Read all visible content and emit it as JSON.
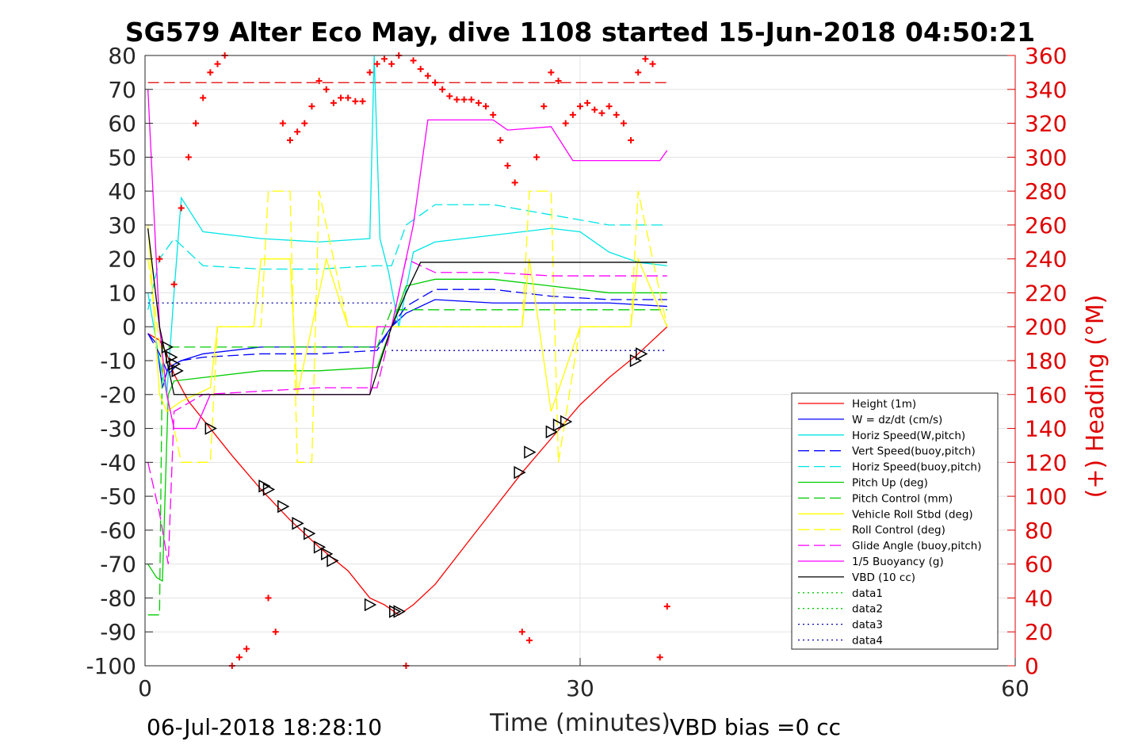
{
  "chart_data": {
    "type": "line",
    "title": "SG579 Alter Eco May, dive 1108 started 15-Jun-2018 04:50:21",
    "xlabel": "Time (minutes)",
    "ylabel": "",
    "ylabel_right": "(+) Heading (°M)",
    "xlim": [
      0,
      60
    ],
    "ylim": [
      -100,
      80
    ],
    "ylim_right": [
      0,
      360
    ],
    "x_ticks": [
      "0",
      "30",
      "60"
    ],
    "y_ticks": [
      "80",
      "70",
      "60",
      "50",
      "40",
      "30",
      "20",
      "10",
      "0",
      "-10",
      "-20",
      "-30",
      "-40",
      "-50",
      "-60",
      "-70",
      "-80",
      "-90",
      "-100"
    ],
    "y_ticks_right": [
      "360",
      "340",
      "320",
      "300",
      "280",
      "260",
      "240",
      "220",
      "200",
      "180",
      "160",
      "140",
      "120",
      "100",
      "80",
      "60",
      "40",
      "20",
      "0"
    ],
    "grid": true,
    "legend_position": "lower-right",
    "footer_left": "06-Jul-2018 18:28:10",
    "footer_right": "VBD bias =0 cc",
    "series": [
      {
        "name": "Height (1m)",
        "color": "#ff0000",
        "style": "solid",
        "x": [
          0.2,
          1.0,
          1.5,
          2.0,
          3.0,
          4.5,
          6.0,
          8.0,
          10.0,
          12.0,
          14.0,
          15.5,
          16.5,
          17.5,
          18.5,
          20.0,
          22.0,
          24.0,
          26.0,
          28.0,
          30.0,
          32.0,
          34.0,
          36.0
        ],
        "y": [
          -2,
          -4,
          -8,
          -14,
          -22,
          -30,
          -38,
          -48,
          -57,
          -65,
          -72,
          -80,
          -82,
          -85,
          -82,
          -76,
          -65,
          -54,
          -43,
          -33,
          -23,
          -15,
          -8,
          0
        ]
      },
      {
        "name": "W = dz/dt (cm/s)",
        "color": "#0000ff",
        "style": "solid",
        "x": [
          0.2,
          0.8,
          1.2,
          1.6,
          2.5,
          4.0,
          8.0,
          12.0,
          16.0,
          17.0,
          18.0,
          20.0,
          24.0,
          28.0,
          32.0,
          36.0
        ],
        "y": [
          -2,
          -5,
          -18,
          -12,
          -10,
          -8,
          -6,
          -6,
          -6,
          0,
          4,
          8,
          7,
          7,
          7,
          6
        ]
      },
      {
        "name": "Horiz Speed(W,pitch)",
        "color": "#00e5e5",
        "style": "solid",
        "x": [
          0.2,
          1.0,
          1.5,
          2.0,
          2.5,
          4.0,
          8.0,
          12.0,
          15.5,
          15.8,
          16.2,
          16.8,
          17.5,
          18.5,
          20.0,
          24.0,
          28.0,
          30.0,
          32.0,
          34.0,
          36.0
        ],
        "y": [
          10,
          -10,
          -20,
          10,
          38,
          28,
          26,
          25,
          26,
          80,
          26,
          16,
          0,
          22,
          25,
          27,
          29,
          28,
          22,
          19,
          18
        ]
      },
      {
        "name": "Vert Speed(buoy,pitch)",
        "color": "#0000ff",
        "style": "dash",
        "x": [
          0.2,
          1.0,
          1.6,
          2.5,
          4.0,
          8.0,
          12.0,
          16.0,
          17.0,
          18.0,
          20.0,
          24.0,
          28.0,
          32.0,
          36.0
        ],
        "y": [
          -2,
          -8,
          -14,
          -10,
          -9,
          -8,
          -8,
          -7,
          0,
          6,
          11,
          11,
          9,
          8,
          8
        ]
      },
      {
        "name": "Horiz Speed(buoy,pitch)",
        "color": "#00e5e5",
        "style": "dash",
        "x": [
          0.2,
          1.0,
          2.0,
          4.0,
          8.0,
          12.0,
          16.0,
          17.0,
          18.0,
          20.0,
          24.0,
          28.0,
          32.0,
          36.0
        ],
        "y": [
          5,
          20,
          26,
          18,
          17,
          17,
          18,
          18,
          30,
          36,
          36,
          33,
          30,
          30
        ]
      },
      {
        "name": "Pitch Up (deg)",
        "color": "#00cc00",
        "style": "solid",
        "x": [
          0.2,
          0.8,
          1.2,
          1.6,
          2.0,
          4.0,
          8.0,
          12.0,
          16.0,
          17.0,
          18.0,
          20.0,
          24.0,
          28.0,
          32.0,
          36.0
        ],
        "y": [
          -70,
          -74,
          -75,
          -20,
          -16,
          -15,
          -13,
          -13,
          -12,
          0,
          12,
          14,
          14,
          12,
          10,
          10
        ]
      },
      {
        "name": "Pitch Control (mm)",
        "color": "#00cc00",
        "style": "dash",
        "x": [
          0.2,
          1.0,
          1.2,
          2.0,
          8.0,
          16.0,
          17.0,
          18.0,
          24.0,
          30.0,
          36.0
        ],
        "y": [
          -85,
          -85,
          -6,
          -6,
          -6,
          -6,
          5,
          5,
          5,
          5,
          5
        ]
      },
      {
        "name": "Vehicle Roll Stbd (deg)",
        "color": "#ffff00",
        "style": "solid",
        "x": [
          0.2,
          1.0,
          1.5,
          2.5,
          4.5,
          5.0,
          7.5,
          8.0,
          10.0,
          10.5,
          11.5,
          12.5,
          14.0,
          16.0,
          17.0,
          20.0,
          24.0,
          26.0,
          26.5,
          28.0,
          30.0,
          32.0,
          33.5,
          34.0,
          36.0
        ],
        "y": [
          30,
          -20,
          -25,
          -22,
          -18,
          0,
          0,
          20,
          20,
          -20,
          0,
          20,
          0,
          0,
          0,
          0,
          0,
          0,
          20,
          -25,
          0,
          0,
          0,
          20,
          0
        ]
      },
      {
        "name": "Roll Control (deg)",
        "color": "#ffff00",
        "style": "dash",
        "x": [
          0.2,
          1.5,
          2.5,
          4.5,
          5.0,
          8.0,
          8.5,
          10.0,
          10.5,
          11.5,
          12.0,
          14.0,
          16.0,
          17.0,
          18.0,
          26.0,
          26.5,
          28.0,
          28.5,
          30.0,
          33.5,
          34.0,
          36.0
        ],
        "y": [
          20,
          -20,
          -40,
          -40,
          0,
          0,
          40,
          40,
          -40,
          -40,
          40,
          0,
          0,
          0,
          0,
          0,
          40,
          40,
          -40,
          0,
          0,
          40,
          0
        ]
      },
      {
        "name": "Glide Angle (buoy,pitch)",
        "color": "#ff00ff",
        "style": "dash",
        "x": [
          0.2,
          1.0,
          1.6,
          2.0,
          4.0,
          8.0,
          12.0,
          16.0,
          17.0,
          18.0,
          20.0,
          24.0,
          28.0,
          32.0,
          36.0
        ],
        "y": [
          -40,
          -55,
          -70,
          -25,
          -20,
          -19,
          -18,
          -18,
          0,
          20,
          16,
          16,
          15,
          15,
          15
        ]
      },
      {
        "name": "1/5 Buoyancy (g)",
        "color": "#ff00ff",
        "style": "solid",
        "x": [
          0.2,
          1.0,
          1.5,
          2.0,
          3.5,
          4.5,
          8.0,
          12.0,
          15.5,
          16.0,
          17.0,
          18.5,
          19.5,
          24.0,
          25.0,
          28.0,
          29.5,
          32.0,
          35.5,
          36.0
        ],
        "y": [
          70,
          0,
          -20,
          -30,
          -30,
          -20,
          -20,
          -20,
          -20,
          0,
          0,
          30,
          61,
          61,
          58,
          59,
          49,
          49,
          49,
          52
        ]
      },
      {
        "name": "VBD (10 cc)",
        "color": "#000000",
        "style": "solid",
        "x": [
          0.2,
          1.0,
          1.5,
          2.0,
          4.0,
          8.0,
          12.0,
          15.5,
          17.0,
          18.0,
          19.0,
          24.0,
          30.0,
          36.0
        ],
        "y": [
          29,
          0,
          -10,
          -20,
          -20,
          -20,
          -20,
          -20,
          0,
          10,
          19,
          19,
          19,
          19
        ]
      },
      {
        "name": "data1",
        "color": "#00cc00",
        "style": "dot",
        "x": [],
        "y": []
      },
      {
        "name": "data2",
        "color": "#00cc00",
        "style": "dot",
        "x": [],
        "y": []
      },
      {
        "name": "data3",
        "color": "#0000aa",
        "style": "dot",
        "x": [
          0.2,
          17.0
        ],
        "y": [
          7,
          7
        ]
      },
      {
        "name": "data4",
        "color": "#0000aa",
        "style": "dot",
        "x": [
          17.0,
          36.0
        ],
        "y": [
          -7,
          -7
        ]
      }
    ],
    "reference_line": {
      "y": 72,
      "color": "#e00000",
      "style": "dash",
      "x_range": [
        0.2,
        36.0
      ]
    },
    "heading": {
      "axis": "right",
      "color": "#ff0000",
      "marker": "+",
      "x": [
        1.0,
        2.0,
        2.5,
        3.0,
        3.5,
        4.0,
        4.5,
        5.0,
        5.5,
        6.0,
        6.5,
        7.0,
        8.5,
        9.0,
        9.5,
        10.0,
        10.5,
        11.0,
        11.5,
        12.0,
        12.5,
        13.0,
        13.5,
        14.0,
        14.5,
        15.0,
        15.5,
        16.0,
        16.5,
        17.0,
        17.5,
        18.0,
        18.5,
        19.0,
        19.5,
        20.0,
        20.5,
        21.0,
        21.5,
        22.0,
        22.5,
        23.0,
        23.5,
        24.0,
        24.5,
        25.0,
        25.5,
        26.0,
        26.5,
        27.0,
        27.5,
        28.0,
        28.5,
        29.0,
        29.5,
        30.0,
        30.5,
        31.0,
        31.5,
        32.0,
        32.5,
        33.0,
        33.5,
        34.0,
        34.5,
        35.0,
        35.5,
        36.0
      ],
      "y": [
        240,
        225,
        270,
        300,
        320,
        335,
        350,
        355,
        360,
        0,
        5,
        10,
        40,
        20,
        320,
        310,
        315,
        320,
        330,
        345,
        340,
        332,
        335,
        335,
        333,
        333,
        350,
        355,
        358,
        355,
        360,
        0,
        357,
        352,
        348,
        344,
        340,
        336,
        334,
        334,
        334,
        332,
        330,
        325,
        310,
        295,
        285,
        20,
        15,
        300,
        330,
        350,
        345,
        320,
        325,
        330,
        332,
        328,
        326,
        330,
        325,
        320,
        310,
        350,
        358,
        355,
        5,
        35
      ]
    },
    "depth_markers": {
      "marker": "triangle",
      "color": "#000000",
      "x": [
        1.5,
        1.8,
        2.0,
        2.2,
        4.5,
        8.2,
        8.5,
        9.5,
        10.5,
        11.3,
        12.0,
        12.5,
        12.9,
        15.5,
        17.2,
        17.5,
        25.8,
        26.5,
        28.0,
        28.5,
        29.0,
        33.8,
        34.2
      ],
      "y": [
        -6,
        -9,
        -11,
        -13,
        -30,
        -47,
        -48,
        -53,
        -58,
        -61,
        -65,
        -67,
        -69,
        -82,
        -84,
        -84,
        -43,
        -37,
        -31,
        -29,
        -28,
        -10,
        -8
      ]
    }
  }
}
